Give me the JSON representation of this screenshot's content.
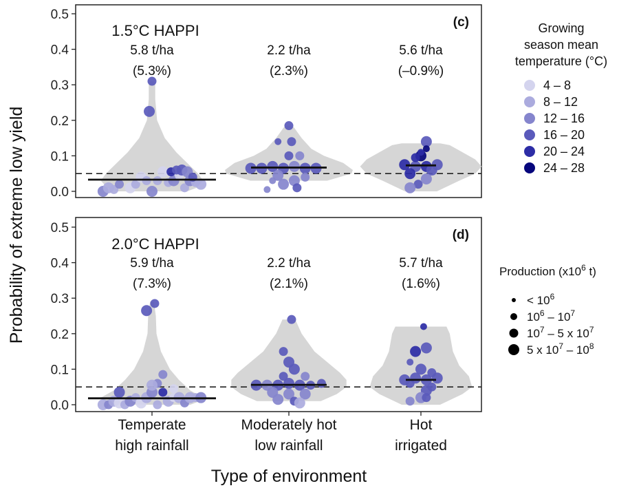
{
  "figure": {
    "ylabel": "Probability of extreme low yield",
    "xlabel": "Type of environment",
    "reference_line": 0.05
  },
  "chart_data": [
    {
      "type": "scatter",
      "panel_label": "(c)",
      "scenario": "1.5°C HAPPI",
      "ylim": [
        0,
        0.5
      ],
      "yticks": [
        "0.0",
        "0.1",
        "0.2",
        "0.3",
        "0.4",
        "0.5"
      ],
      "categories": [
        {
          "label_lines": [
            "Temperate",
            "high rainfall"
          ],
          "yield": "5.8 t/ha",
          "change": "(5.3%)",
          "median": 0.033,
          "violin": [
            [
              0,
              0.55
            ],
            [
              0.01,
              0.7
            ],
            [
              0.03,
              0.8
            ],
            [
              0.05,
              0.72
            ],
            [
              0.08,
              0.55
            ],
            [
              0.11,
              0.38
            ],
            [
              0.15,
              0.2
            ],
            [
              0.2,
              0.08
            ],
            [
              0.26,
              0.05
            ],
            [
              0.3,
              0.05
            ],
            [
              0.31,
              0.03
            ]
          ],
          "points": [
            [
              -0.9,
              0.0,
              2,
              3
            ],
            [
              -0.8,
              0.01,
              1,
              3
            ],
            [
              -0.7,
              0.005,
              1,
              2
            ],
            [
              -0.6,
              0.02,
              2,
              2
            ],
            [
              -0.5,
              0.03,
              1,
              4
            ],
            [
              -0.4,
              0.01,
              0,
              3
            ],
            [
              -0.3,
              0.02,
              1,
              2
            ],
            [
              -0.2,
              0.04,
              0,
              3
            ],
            [
              -0.1,
              0.03,
              1,
              2
            ],
            [
              0.0,
              0.0,
              2,
              3
            ],
            [
              0.1,
              0.03,
              1,
              2
            ],
            [
              0.2,
              0.055,
              0,
              3
            ],
            [
              0.3,
              0.025,
              1,
              2
            ],
            [
              0.4,
              0.03,
              2,
              3
            ],
            [
              0.5,
              0.045,
              0,
              2
            ],
            [
              0.6,
              0.01,
              1,
              2
            ],
            [
              0.7,
              0.03,
              2,
              3
            ],
            [
              0.8,
              0.025,
              1,
              2
            ],
            [
              0.9,
              0.02,
              1,
              3
            ],
            [
              0.35,
              0.055,
              4,
              2
            ],
            [
              0.55,
              0.06,
              3,
              3
            ],
            [
              0.65,
              0.055,
              2,
              3
            ],
            [
              0.75,
              0.04,
              3,
              2
            ],
            [
              -0.05,
              0.225,
              3,
              3
            ],
            [
              0.0,
              0.31,
              3,
              2
            ],
            [
              0.45,
              0.06,
              3,
              2
            ]
          ]
        },
        {
          "label_lines": [
            "Moderately hot",
            "low rainfall"
          ],
          "yield": "2.2 t/ha",
          "change": "(2.3%)",
          "median": 0.067,
          "violin": [
            [
              0.03,
              0.6
            ],
            [
              0.05,
              0.98
            ],
            [
              0.06,
              1.0
            ],
            [
              0.08,
              0.85
            ],
            [
              0.1,
              0.55
            ],
            [
              0.12,
              0.35
            ],
            [
              0.15,
              0.2
            ],
            [
              0.18,
              0.08
            ],
            [
              0.185,
              0.02
            ]
          ],
          "points": [
            [
              -0.7,
              0.065,
              3,
              3
            ],
            [
              -0.5,
              0.065,
              3,
              3
            ],
            [
              -0.3,
              0.07,
              3,
              3
            ],
            [
              -0.1,
              0.065,
              3,
              3
            ],
            [
              0.1,
              0.07,
              2,
              3
            ],
            [
              0.3,
              0.065,
              3,
              3
            ],
            [
              0.5,
              0.065,
              3,
              3
            ],
            [
              -0.2,
              0.045,
              2,
              3
            ],
            [
              0.1,
              0.03,
              2,
              3
            ],
            [
              -0.1,
              0.02,
              2,
              3
            ],
            [
              0.15,
              0.01,
              3,
              2
            ],
            [
              -0.4,
              0.005,
              2,
              1
            ],
            [
              0.0,
              0.1,
              3,
              2
            ],
            [
              0.2,
              0.1,
              2,
              2
            ],
            [
              -0.2,
              0.14,
              3,
              1
            ],
            [
              0.05,
              0.14,
              3,
              2
            ],
            [
              0.0,
              0.185,
              3,
              2
            ],
            [
              0.3,
              0.04,
              2,
              2
            ],
            [
              -0.3,
              0.03,
              2,
              1
            ]
          ]
        },
        {
          "label_lines": [
            "Hot",
            "irrigated"
          ],
          "yield": "5.6 t/ha",
          "change": "(–0.9%)",
          "median": 0.073,
          "violin": [
            [
              0.0,
              0.25
            ],
            [
              0.03,
              0.6
            ],
            [
              0.05,
              0.85
            ],
            [
              0.07,
              0.95
            ],
            [
              0.09,
              0.85
            ],
            [
              0.11,
              0.65
            ],
            [
              0.13,
              0.45
            ],
            [
              0.135,
              0.3
            ]
          ],
          "points": [
            [
              -0.3,
              0.075,
              4,
              3
            ],
            [
              -0.1,
              0.07,
              3,
              3
            ],
            [
              0.1,
              0.07,
              4,
              3
            ],
            [
              0.3,
              0.075,
              3,
              3
            ],
            [
              0.0,
              0.1,
              5,
              3
            ],
            [
              -0.2,
              0.05,
              4,
              3
            ],
            [
              0.2,
              0.06,
              3,
              3
            ],
            [
              -0.1,
              0.095,
              4,
              2
            ],
            [
              0.1,
              0.14,
              3,
              3
            ],
            [
              -0.05,
              0.02,
              3,
              2
            ],
            [
              0.1,
              0.035,
              2,
              3
            ],
            [
              -0.2,
              0.01,
              2,
              3
            ],
            [
              0.0,
              0.11,
              4,
              1
            ],
            [
              0.1,
              0.12,
              5,
              1
            ]
          ]
        }
      ]
    },
    {
      "type": "scatter",
      "panel_label": "(d)",
      "scenario": "2.0°C HAPPI",
      "ylim": [
        0,
        0.5
      ],
      "yticks": [
        "0.0",
        "0.1",
        "0.2",
        "0.3",
        "0.4",
        "0.5"
      ],
      "categories": [
        {
          "label_lines": [
            "Temperate",
            "high rainfall"
          ],
          "yield": "5.9 t/ha",
          "change": "(7.3%)",
          "median": 0.018,
          "violin": [
            [
              0,
              0.6
            ],
            [
              0.01,
              0.75
            ],
            [
              0.02,
              0.8
            ],
            [
              0.04,
              0.6
            ],
            [
              0.07,
              0.42
            ],
            [
              0.1,
              0.28
            ],
            [
              0.15,
              0.14
            ],
            [
              0.2,
              0.07
            ],
            [
              0.25,
              0.06
            ],
            [
              0.29,
              0.03
            ]
          ],
          "points": [
            [
              -0.9,
              0.0,
              1,
              3
            ],
            [
              -0.8,
              0.0,
              2,
              2
            ],
            [
              -0.7,
              0.01,
              1,
              3
            ],
            [
              -0.6,
              0.005,
              0,
              3
            ],
            [
              -0.5,
              0.0,
              1,
              2
            ],
            [
              -0.4,
              0.01,
              2,
              3
            ],
            [
              -0.3,
              0.02,
              1,
              2
            ],
            [
              -0.2,
              0.005,
              0,
              3
            ],
            [
              -0.1,
              0.02,
              1,
              3
            ],
            [
              0.0,
              0.035,
              2,
              3
            ],
            [
              0.1,
              0.0,
              1,
              2
            ],
            [
              0.2,
              0.035,
              4,
              2
            ],
            [
              0.3,
              0.01,
              1,
              3
            ],
            [
              0.4,
              0.02,
              0,
              2
            ],
            [
              0.5,
              0.02,
              1,
              3
            ],
            [
              0.6,
              0.005,
              2,
              2
            ],
            [
              0.7,
              0.02,
              1,
              3
            ],
            [
              0.8,
              0.02,
              1,
              2
            ],
            [
              0.9,
              0.02,
              2,
              3
            ],
            [
              -0.6,
              0.035,
              3,
              3
            ],
            [
              0.1,
              0.06,
              2,
              2
            ],
            [
              0.2,
              0.085,
              2,
              2
            ],
            [
              0.0,
              0.055,
              1,
              3
            ],
            [
              0.4,
              0.045,
              0,
              2
            ],
            [
              -0.1,
              0.265,
              3,
              3
            ],
            [
              0.05,
              0.285,
              3,
              2
            ]
          ]
        },
        {
          "label_lines": [
            "Moderately hot",
            "low rainfall"
          ],
          "yield": "2.2 t/ha",
          "change": "(2.1%)",
          "median": 0.056,
          "violin": [
            [
              0.01,
              0.5
            ],
            [
              0.03,
              0.75
            ],
            [
              0.05,
              0.9
            ],
            [
              0.07,
              0.9
            ],
            [
              0.09,
              0.8
            ],
            [
              0.12,
              0.6
            ],
            [
              0.15,
              0.4
            ],
            [
              0.2,
              0.2
            ],
            [
              0.24,
              0.1
            ]
          ],
          "points": [
            [
              -0.6,
              0.055,
              3,
              3
            ],
            [
              -0.4,
              0.055,
              2,
              3
            ],
            [
              -0.2,
              0.055,
              3,
              3
            ],
            [
              0.0,
              0.06,
              3,
              3
            ],
            [
              0.2,
              0.055,
              3,
              3
            ],
            [
              0.4,
              0.055,
              3,
              2
            ],
            [
              0.6,
              0.06,
              3,
              2
            ],
            [
              -0.3,
              0.035,
              2,
              3
            ],
            [
              0.0,
              0.03,
              2,
              3
            ],
            [
              0.3,
              0.03,
              2,
              3
            ],
            [
              -0.2,
              0.015,
              2,
              3
            ],
            [
              0.1,
              0.01,
              3,
              2
            ],
            [
              0.2,
              0.005,
              1,
              3
            ],
            [
              -0.1,
              0.08,
              3,
              2
            ],
            [
              0.1,
              0.1,
              3,
              3
            ],
            [
              0.0,
              0.12,
              3,
              3
            ],
            [
              -0.1,
              0.15,
              3,
              2
            ],
            [
              0.05,
              0.24,
              3,
              2
            ],
            [
              0.3,
              0.08,
              2,
              2
            ]
          ]
        },
        {
          "label_lines": [
            "Hot",
            "irrigated"
          ],
          "yield": "5.7 t/ha",
          "change": "(1.6%)",
          "median": 0.07,
          "violin": [
            [
              0.0,
              0.3
            ],
            [
              0.03,
              0.65
            ],
            [
              0.05,
              0.8
            ],
            [
              0.08,
              0.75
            ],
            [
              0.11,
              0.6
            ],
            [
              0.15,
              0.5
            ],
            [
              0.2,
              0.45
            ],
            [
              0.22,
              0.4
            ]
          ],
          "points": [
            [
              -0.3,
              0.07,
              3,
              3
            ],
            [
              -0.1,
              0.075,
              3,
              3
            ],
            [
              0.1,
              0.07,
              3,
              3
            ],
            [
              0.3,
              0.075,
              3,
              3
            ],
            [
              0.0,
              0.1,
              3,
              3
            ],
            [
              0.2,
              0.05,
              3,
              2
            ],
            [
              -0.2,
              0.06,
              3,
              2
            ],
            [
              0.1,
              0.04,
              3,
              3
            ],
            [
              0.0,
              0.02,
              2,
              3
            ],
            [
              -0.2,
              0.01,
              2,
              2
            ],
            [
              0.1,
              0.02,
              3,
              2
            ],
            [
              -0.1,
              0.15,
              4,
              3
            ],
            [
              0.1,
              0.16,
              3,
              3
            ],
            [
              0.05,
              0.22,
              4,
              1
            ],
            [
              0.2,
              0.09,
              3,
              2
            ],
            [
              -0.2,
              0.12,
              3,
              1
            ]
          ]
        }
      ]
    }
  ],
  "legend_color": {
    "title_lines": [
      "Growing",
      "season mean",
      "temperature (°C)"
    ],
    "items": [
      {
        "label": "4 – 8",
        "color": "#d4d4ee"
      },
      {
        "label": "8 – 12",
        "color": "#ababde"
      },
      {
        "label": "12 – 16",
        "color": "#8585cd"
      },
      {
        "label": "16 – 20",
        "color": "#5a5abb"
      },
      {
        "label": "20 – 24",
        "color": "#2d2da6"
      },
      {
        "label": "24 – 28",
        "color": "#06067c"
      }
    ]
  },
  "legend_size": {
    "title_main": "Production (x10",
    "title_sup": "6",
    "title_end": " t)",
    "items": [
      {
        "base": "< 10",
        "sup": "6",
        "tail": "",
        "tail_sup": "",
        "r": 3
      },
      {
        "base": "10",
        "sup": "6",
        "tail": " – 10",
        "tail_sup": "7",
        "r": 5
      },
      {
        "base": "10",
        "sup": "7",
        "tail": " – 5 x 10",
        "tail_sup": "7",
        "r": 6.5
      },
      {
        "base": "5 x 10",
        "sup": "7",
        "tail": " – 10",
        "tail_sup": "8",
        "r": 8
      }
    ]
  }
}
